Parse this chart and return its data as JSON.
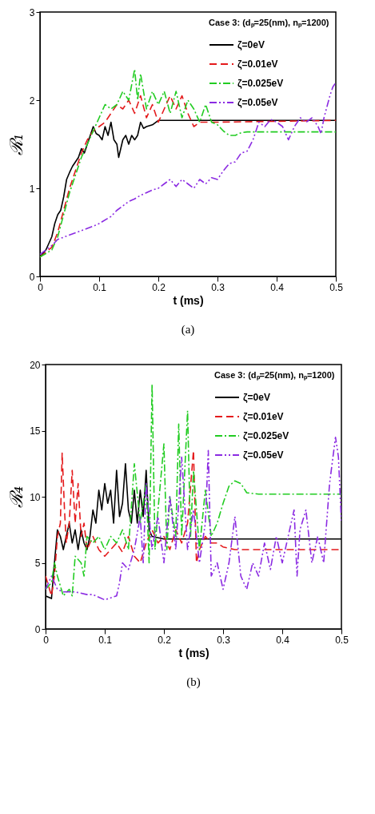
{
  "chart_data": [
    {
      "type": "line",
      "xlabel": "t (ms)",
      "ylabel": "ℛ₁",
      "legend_title": "Case 3: (dₚ=25(nm), nₚ=1200)",
      "legend": "top right",
      "annotations": [
        "(a)"
      ],
      "xlim": [
        0,
        0.5
      ],
      "xticks": [
        0,
        0.1,
        0.2,
        0.3,
        0.4,
        0.5
      ],
      "ylim": [
        0,
        3
      ],
      "yticks": [
        0,
        1,
        2,
        3
      ],
      "grid": false,
      "series": [
        {
          "name": "ζ=0eV",
          "color": "#000000",
          "line_style": "solid",
          "x": [
            0,
            0.01,
            0.02,
            0.025,
            0.03,
            0.035,
            0.04,
            0.045,
            0.05,
            0.055,
            0.06,
            0.065,
            0.07,
            0.075,
            0.08,
            0.085,
            0.09,
            0.095,
            0.1,
            0.105,
            0.11,
            0.115,
            0.12,
            0.125,
            0.13,
            0.133,
            0.14,
            0.145,
            0.15,
            0.155,
            0.16,
            0.165,
            0.17,
            0.175,
            0.18,
            0.19,
            0.2,
            0.5
          ],
          "values": [
            0.22,
            0.3,
            0.45,
            0.6,
            0.7,
            0.75,
            0.9,
            1.1,
            1.18,
            1.25,
            1.3,
            1.35,
            1.45,
            1.4,
            1.5,
            1.6,
            1.7,
            1.62,
            1.6,
            1.55,
            1.7,
            1.6,
            1.75,
            1.55,
            1.5,
            1.35,
            1.55,
            1.6,
            1.5,
            1.6,
            1.55,
            1.6,
            1.75,
            1.68,
            1.7,
            1.72,
            1.77,
            1.77
          ]
        },
        {
          "name": "ζ=0.01eV",
          "color": "#e41a1c",
          "line_style": "dashed",
          "x": [
            0,
            0.02,
            0.03,
            0.04,
            0.05,
            0.06,
            0.07,
            0.08,
            0.09,
            0.1,
            0.11,
            0.12,
            0.13,
            0.14,
            0.15,
            0.16,
            0.17,
            0.18,
            0.19,
            0.2,
            0.21,
            0.22,
            0.23,
            0.24,
            0.25,
            0.26,
            0.27,
            0.28,
            0.3,
            0.5
          ],
          "values": [
            0.22,
            0.33,
            0.5,
            0.75,
            1.0,
            1.2,
            1.4,
            1.55,
            1.65,
            1.7,
            1.75,
            1.85,
            1.95,
            1.9,
            2.0,
            1.85,
            2.05,
            1.8,
            1.95,
            1.75,
            1.9,
            2.05,
            1.9,
            2.05,
            1.85,
            1.7,
            1.75,
            1.75,
            1.75,
            1.77
          ]
        },
        {
          "name": "ζ=0.025eV",
          "color": "#22cc22",
          "line_style": "dashdot",
          "x": [
            0,
            0.02,
            0.03,
            0.04,
            0.05,
            0.06,
            0.07,
            0.08,
            0.09,
            0.1,
            0.11,
            0.12,
            0.13,
            0.14,
            0.15,
            0.16,
            0.165,
            0.17,
            0.18,
            0.19,
            0.2,
            0.21,
            0.22,
            0.23,
            0.24,
            0.25,
            0.26,
            0.27,
            0.28,
            0.29,
            0.3,
            0.31,
            0.32,
            0.33,
            0.34,
            0.35,
            0.5
          ],
          "values": [
            0.22,
            0.3,
            0.45,
            0.7,
            0.95,
            1.15,
            1.35,
            1.5,
            1.65,
            1.8,
            1.95,
            1.9,
            1.95,
            2.1,
            2.0,
            2.35,
            2.0,
            2.3,
            1.9,
            2.1,
            1.95,
            2.1,
            1.85,
            2.1,
            1.8,
            2.0,
            1.9,
            1.75,
            1.95,
            1.75,
            1.72,
            1.65,
            1.6,
            1.6,
            1.63,
            1.64,
            1.64
          ]
        },
        {
          "name": "ζ=0.05eV",
          "color": "#8b2be2",
          "line_style": "dashdotdot",
          "x": [
            0,
            0.02,
            0.03,
            0.05,
            0.07,
            0.09,
            0.1,
            0.12,
            0.13,
            0.14,
            0.15,
            0.16,
            0.17,
            0.18,
            0.19,
            0.2,
            0.21,
            0.22,
            0.23,
            0.24,
            0.25,
            0.26,
            0.27,
            0.28,
            0.29,
            0.3,
            0.31,
            0.32,
            0.33,
            0.34,
            0.35,
            0.36,
            0.37,
            0.38,
            0.39,
            0.4,
            0.41,
            0.42,
            0.43,
            0.44,
            0.45,
            0.46,
            0.47,
            0.475,
            0.48,
            0.49,
            0.495,
            0.5
          ],
          "values": [
            0.25,
            0.35,
            0.42,
            0.47,
            0.52,
            0.57,
            0.6,
            0.68,
            0.75,
            0.8,
            0.85,
            0.88,
            0.92,
            0.95,
            0.98,
            1.0,
            1.05,
            1.1,
            1.02,
            1.1,
            1.05,
            1.0,
            1.1,
            1.05,
            1.12,
            1.1,
            1.2,
            1.28,
            1.3,
            1.4,
            1.42,
            1.55,
            1.75,
            1.7,
            1.78,
            1.75,
            1.7,
            1.55,
            1.7,
            1.8,
            1.75,
            1.8,
            1.7,
            1.62,
            1.8,
            2.05,
            2.15,
            2.2
          ]
        }
      ]
    },
    {
      "type": "line",
      "xlabel": "t (ms)",
      "ylabel": "ℛ₄",
      "legend_title": "Case 3: (dₚ=25(nm), nₚ=1200)",
      "legend": "top right",
      "annotations": [
        "(b)"
      ],
      "xlim": [
        0,
        0.5
      ],
      "xticks": [
        0,
        0.1,
        0.2,
        0.3,
        0.4,
        0.5
      ],
      "ylim": [
        0,
        20
      ],
      "yticks": [
        0,
        5,
        10,
        15,
        20
      ],
      "grid": false,
      "series": [
        {
          "name": "ζ=0eV",
          "color": "#000000",
          "line_style": "solid",
          "x": [
            0,
            0.01,
            0.015,
            0.02,
            0.025,
            0.03,
            0.035,
            0.04,
            0.045,
            0.05,
            0.055,
            0.06,
            0.065,
            0.07,
            0.075,
            0.08,
            0.085,
            0.09,
            0.095,
            0.1,
            0.105,
            0.11,
            0.115,
            0.12,
            0.125,
            0.13,
            0.135,
            0.14,
            0.145,
            0.15,
            0.155,
            0.16,
            0.165,
            0.17,
            0.175,
            0.18,
            0.2,
            0.5
          ],
          "values": [
            2.5,
            2.3,
            5,
            7.5,
            7,
            6,
            7,
            8,
            6.5,
            7.5,
            6,
            7.5,
            6.5,
            6,
            7,
            9,
            8,
            10.5,
            9,
            11,
            9.5,
            10.5,
            8,
            12,
            8.5,
            9.5,
            12.5,
            9,
            8,
            10.5,
            8,
            10.5,
            8.5,
            12,
            7.5,
            7,
            6.8,
            6.8
          ]
        },
        {
          "name": "ζ=0.01eV",
          "color": "#e41a1c",
          "line_style": "dashed",
          "x": [
            0,
            0.01,
            0.015,
            0.02,
            0.025,
            0.028,
            0.032,
            0.035,
            0.04,
            0.045,
            0.05,
            0.055,
            0.06,
            0.065,
            0.07,
            0.075,
            0.08,
            0.09,
            0.1,
            0.11,
            0.12,
            0.13,
            0.14,
            0.15,
            0.16,
            0.17,
            0.18,
            0.19,
            0.2,
            0.21,
            0.22,
            0.23,
            0.24,
            0.25,
            0.255,
            0.26,
            0.27,
            0.28,
            0.29,
            0.3,
            0.32,
            0.5
          ],
          "values": [
            4,
            2.5,
            4,
            7,
            8,
            13.3,
            9,
            6.5,
            8,
            12,
            8,
            11,
            7,
            8,
            6,
            6.5,
            7,
            6,
            5.5,
            6,
            6.5,
            5.8,
            7,
            5.5,
            5,
            6.5,
            7.5,
            6.5,
            7,
            6,
            7.5,
            6.5,
            8,
            13.5,
            5,
            6,
            7,
            6.5,
            6.5,
            6.2,
            6,
            6
          ]
        },
        {
          "name": "ζ=0.025eV",
          "color": "#22cc22",
          "line_style": "dashdot",
          "x": [
            0,
            0.01,
            0.015,
            0.02,
            0.03,
            0.04,
            0.045,
            0.05,
            0.06,
            0.065,
            0.07,
            0.08,
            0.09,
            0.1,
            0.11,
            0.12,
            0.13,
            0.14,
            0.15,
            0.16,
            0.17,
            0.175,
            0.18,
            0.185,
            0.19,
            0.2,
            0.205,
            0.21,
            0.22,
            0.225,
            0.23,
            0.24,
            0.245,
            0.25,
            0.26,
            0.27,
            0.28,
            0.29,
            0.3,
            0.31,
            0.32,
            0.33,
            0.34,
            0.36,
            0.5
          ],
          "values": [
            3,
            3.5,
            5,
            4,
            2.5,
            3,
            2.5,
            5.5,
            5,
            4,
            7,
            6.5,
            7,
            6,
            7,
            6.5,
            7.5,
            6,
            12.5,
            8,
            11,
            5,
            18.5,
            6,
            9,
            14,
            6,
            10,
            7,
            15.5,
            7,
            16.5,
            7,
            12,
            6,
            10.5,
            7,
            8,
            9.5,
            10.8,
            11.2,
            11,
            10.3,
            10.2,
            10.2
          ]
        },
        {
          "name": "ζ=0.05eV",
          "color": "#8b2be2",
          "line_style": "dashdotdot",
          "x": [
            0,
            0.01,
            0.02,
            0.03,
            0.05,
            0.07,
            0.08,
            0.1,
            0.12,
            0.125,
            0.13,
            0.14,
            0.15,
            0.16,
            0.165,
            0.17,
            0.18,
            0.19,
            0.2,
            0.21,
            0.22,
            0.23,
            0.24,
            0.25,
            0.26,
            0.27,
            0.275,
            0.28,
            0.29,
            0.3,
            0.31,
            0.32,
            0.33,
            0.34,
            0.35,
            0.36,
            0.37,
            0.38,
            0.39,
            0.4,
            0.41,
            0.42,
            0.425,
            0.43,
            0.44,
            0.45,
            0.46,
            0.47,
            0.48,
            0.49,
            0.495,
            0.5
          ],
          "values": [
            3,
            4,
            3,
            2.8,
            2.8,
            2.6,
            2.6,
            2.2,
            2.5,
            3.5,
            5,
            4.5,
            6,
            8.5,
            5,
            11,
            6,
            8.5,
            5,
            10,
            6,
            13,
            6,
            9,
            5,
            8,
            13.5,
            4,
            5,
            3,
            5,
            8.5,
            4,
            3,
            5,
            4,
            6.5,
            4.5,
            7,
            5,
            7,
            9,
            4,
            7.5,
            9,
            5,
            7,
            5,
            11,
            14.5,
            13,
            8
          ]
        }
      ]
    }
  ]
}
